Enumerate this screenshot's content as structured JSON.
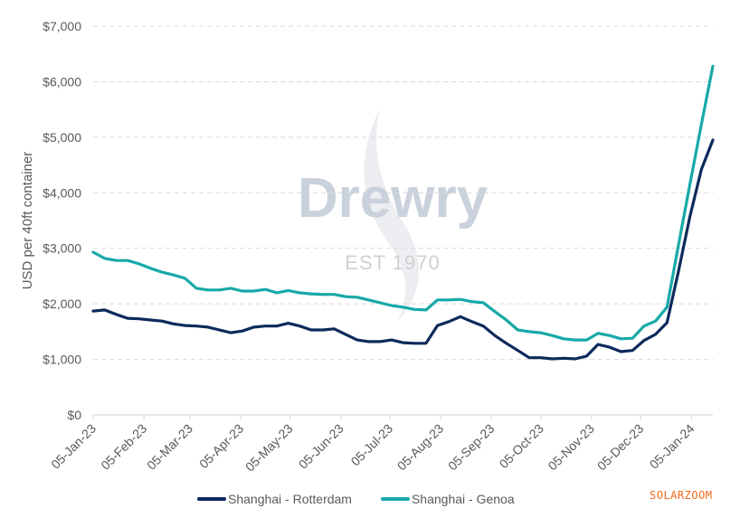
{
  "chart_data": {
    "type": "line",
    "title": "",
    "xlabel": "",
    "ylabel": "USD per 40ft container",
    "ylim": [
      0,
      7000
    ],
    "yticks": [
      0,
      1000,
      2000,
      3000,
      4000,
      5000,
      6000,
      7000
    ],
    "ytick_labels": [
      "$0",
      "$1,000",
      "$2,000",
      "$3,000",
      "$4,000",
      "$5,000",
      "$6,000",
      "$7,000"
    ],
    "grid": true,
    "legend_position": "bottom",
    "xtick_labels": [
      "05-Jan-23",
      "05-Feb-23",
      "05-Mar-23",
      "05-Apr-23",
      "05-May-23",
      "05-Jun-23",
      "05-Jul-23",
      "05-Aug-23",
      "05-Sep-23",
      "05-Oct-23",
      "05-Nov-23",
      "05-Dec-23",
      "05-Jan-24"
    ],
    "frequency": "weekly",
    "x_start": "05-Jan-23",
    "x_end": "25-Jan-24",
    "series": [
      {
        "name": "Shanghai - Rotterdam",
        "color": "#0d2a5c",
        "values": [
          1870,
          1890,
          1810,
          1740,
          1730,
          1710,
          1690,
          1640,
          1610,
          1600,
          1580,
          1530,
          1480,
          1510,
          1580,
          1600,
          1600,
          1650,
          1600,
          1530,
          1530,
          1550,
          1450,
          1350,
          1320,
          1320,
          1350,
          1300,
          1290,
          1290,
          1610,
          1680,
          1770,
          1680,
          1600,
          1430,
          1290,
          1160,
          1030,
          1030,
          1010,
          1020,
          1010,
          1060,
          1270,
          1220,
          1140,
          1160,
          1340,
          1450,
          1660,
          2580,
          3570,
          4420,
          4950
        ]
      },
      {
        "name": "Shanghai - Genoa",
        "color": "#17a9a8",
        "values": [
          2930,
          2820,
          2780,
          2780,
          2720,
          2640,
          2570,
          2520,
          2460,
          2280,
          2250,
          2250,
          2280,
          2230,
          2230,
          2260,
          2200,
          2240,
          2200,
          2180,
          2170,
          2170,
          2130,
          2120,
          2070,
          2020,
          1970,
          1940,
          1900,
          1890,
          2070,
          2070,
          2080,
          2040,
          2020,
          1860,
          1710,
          1530,
          1500,
          1480,
          1430,
          1370,
          1350,
          1350,
          1470,
          1430,
          1370,
          1380,
          1600,
          1690,
          1940,
          3050,
          4150,
          5230,
          6280
        ]
      }
    ]
  },
  "watermark": {
    "brand": "Drewry",
    "tagline": "EST 1970"
  },
  "legend": {
    "items": [
      {
        "label": "Shanghai - Rotterdam",
        "color": "#0d2a5c"
      },
      {
        "label": "Shanghai - Genoa",
        "color": "#17a9a8"
      }
    ]
  },
  "source_watermark": "SOLARZOOM"
}
